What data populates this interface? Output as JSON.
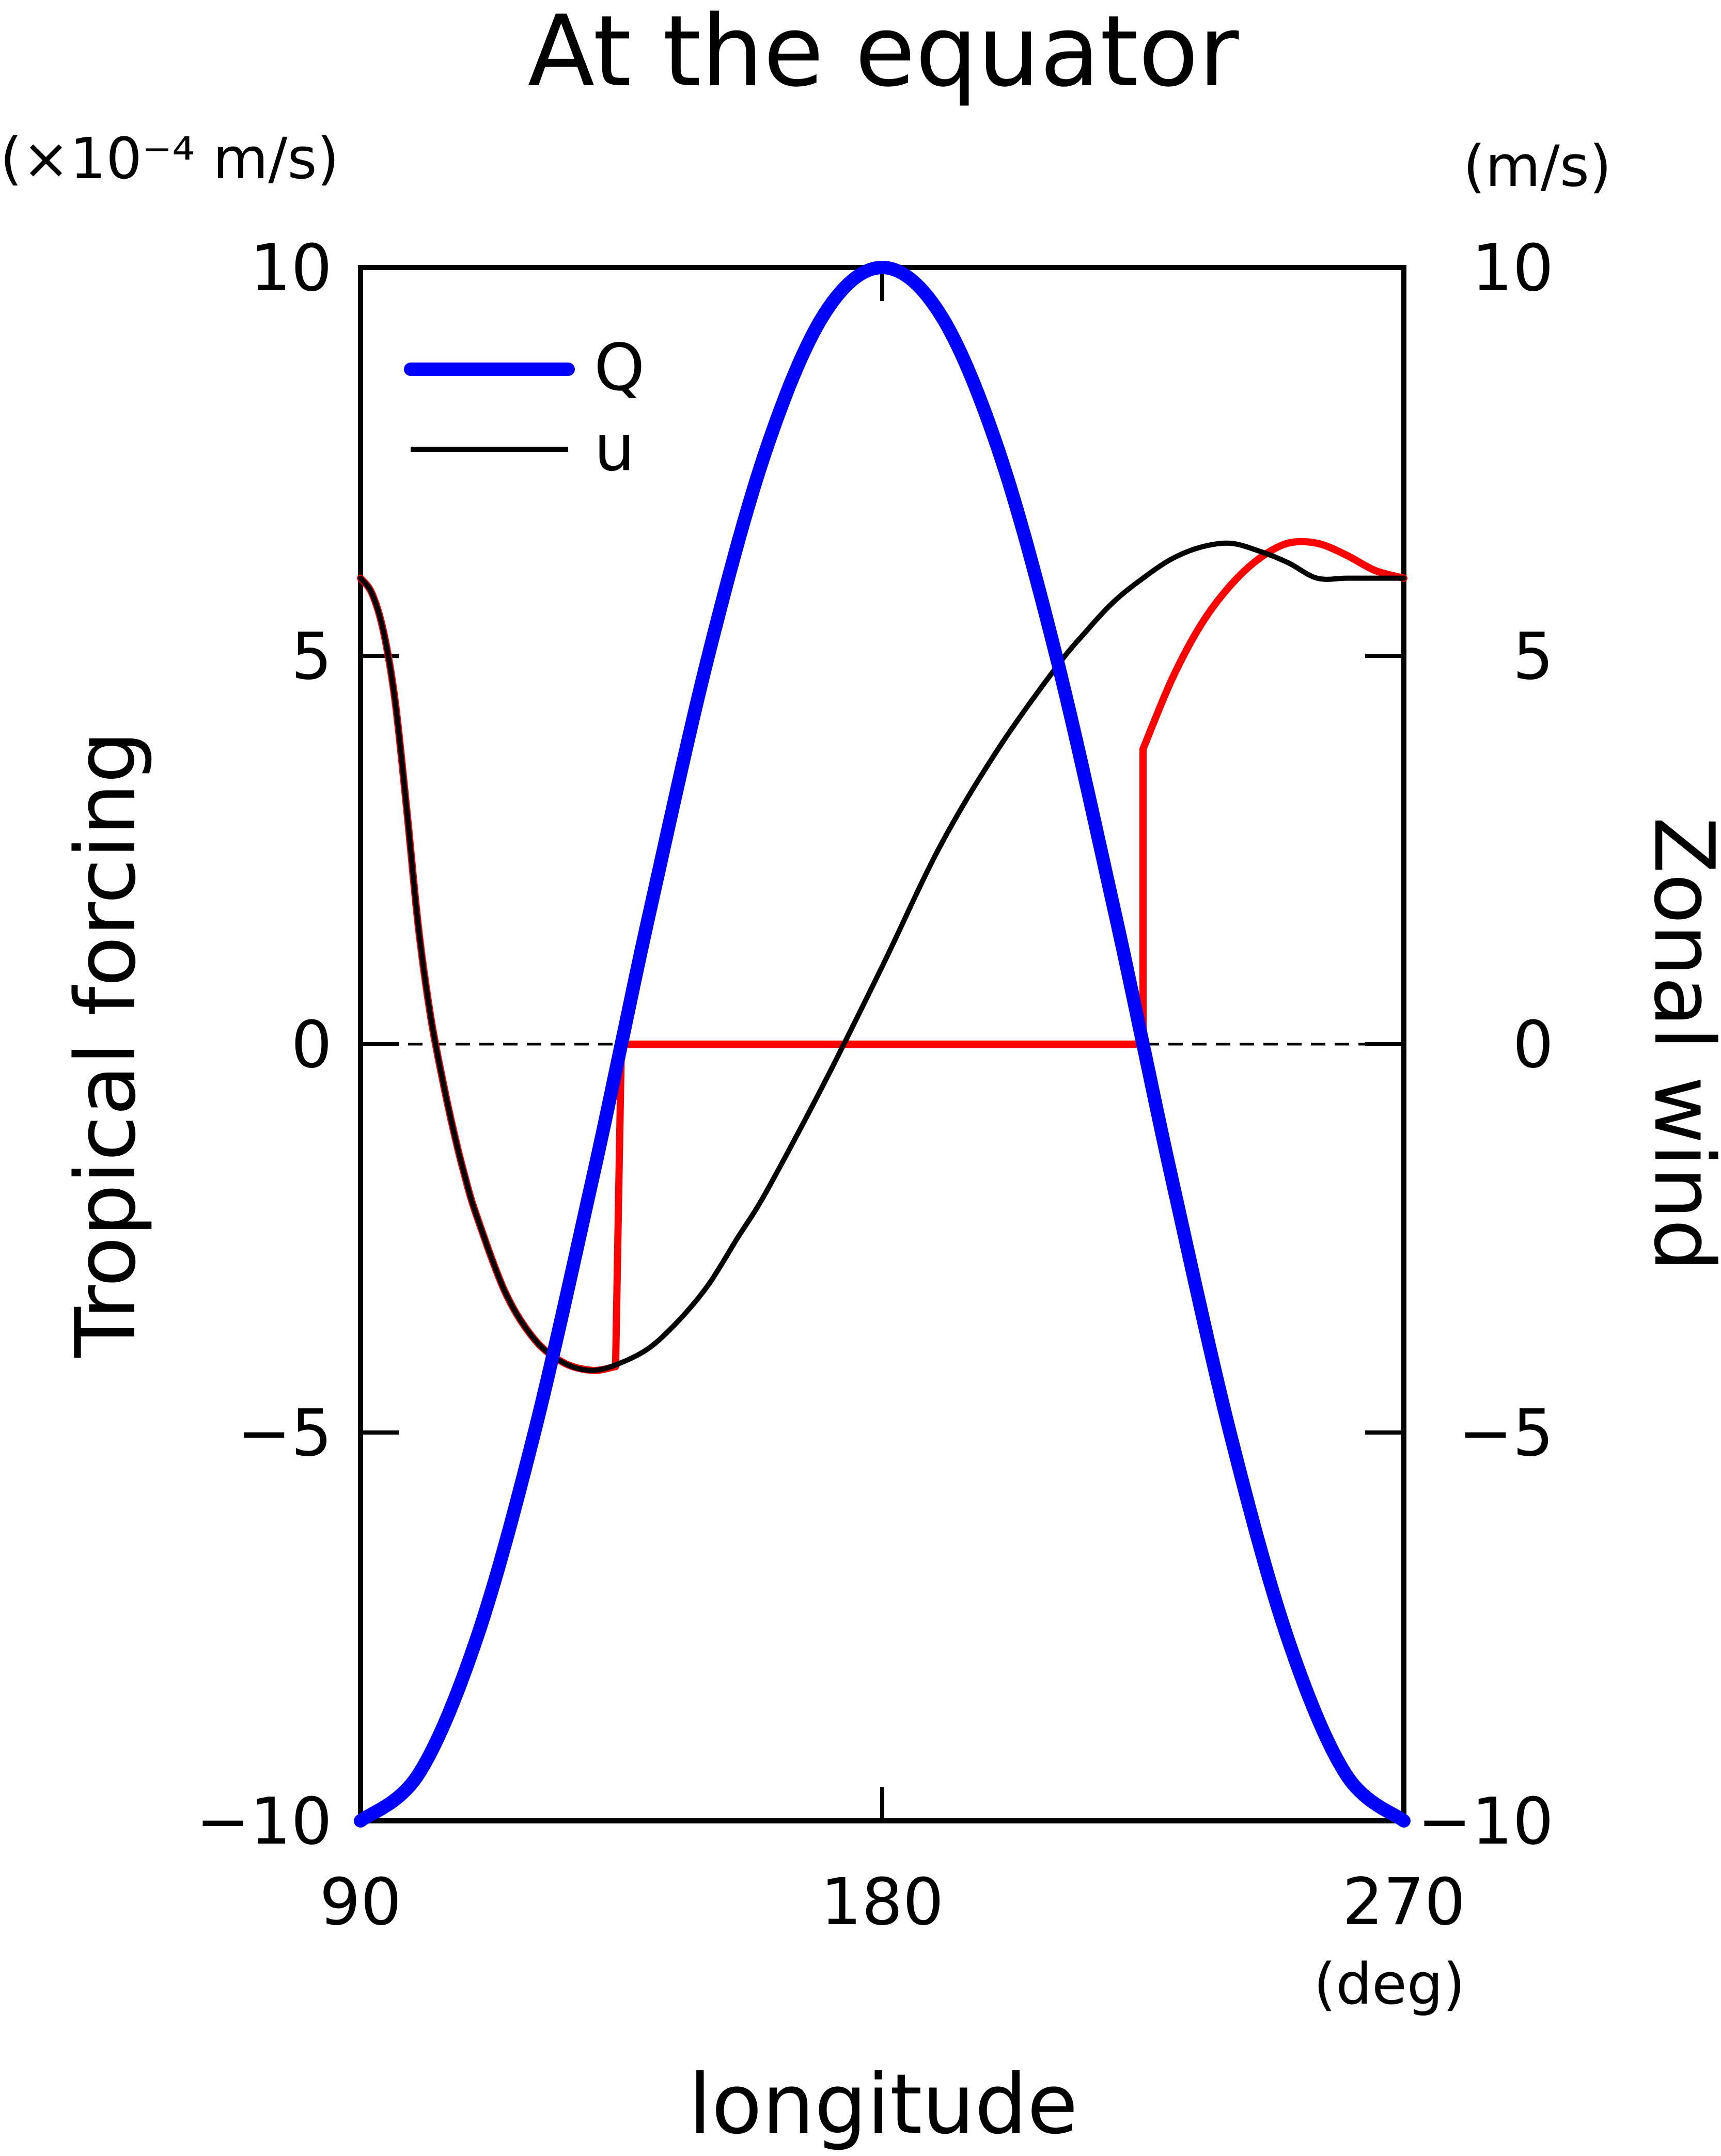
{
  "chart_data": {
    "type": "line",
    "title": "At the equator",
    "xlabel": "longitude",
    "x_unit": "(deg)",
    "xlim": [
      90,
      270
    ],
    "x_ticks": [
      "90",
      "180",
      "270"
    ],
    "ylabel_left": "Tropical forcing",
    "y_unit_left": "(×10⁻⁴ m/s)",
    "ylim_left": [
      -10,
      10
    ],
    "ylabel_right": "Zonal wind",
    "y_unit_right": "(m/s)",
    "ylim_right": [
      -10,
      10
    ],
    "y_ticks": [
      "10",
      "5",
      "0",
      "−5",
      "−10"
    ],
    "legend_position": "top-left",
    "zero_line": "dashed",
    "series": [
      {
        "name": "Q",
        "color": "#0000ff",
        "x": [
          90,
          100,
          110,
          120,
          130,
          135,
          140,
          150,
          160,
          170,
          180,
          190,
          200,
          210,
          220,
          225,
          230,
          240,
          250,
          260,
          270
        ],
        "y": [
          -10,
          -9.4,
          -7.66,
          -5,
          -1.74,
          0,
          1.74,
          5,
          7.66,
          9.4,
          10,
          9.4,
          7.66,
          5,
          1.74,
          0,
          -1.74,
          -5,
          -7.66,
          -9.4,
          -10
        ]
      },
      {
        "name": "u",
        "color": "#000000",
        "x": [
          90,
          92,
          94,
          96,
          98,
          100,
          102,
          104,
          106,
          108,
          110,
          115,
          120,
          125,
          130,
          135,
          140,
          145,
          150,
          155,
          160,
          170,
          180,
          190,
          200,
          210,
          215,
          220,
          225,
          230,
          235,
          240,
          245,
          250,
          255,
          260,
          265,
          270
        ],
        "y": [
          6,
          5.8,
          5.3,
          4.4,
          3.0,
          1.5,
          0.4,
          -0.4,
          -1.1,
          -1.7,
          -2.2,
          -3.2,
          -3.8,
          -4.1,
          -4.2,
          -4.1,
          -3.9,
          -3.55,
          -3.1,
          -2.5,
          -1.9,
          -0.5,
          1.0,
          2.55,
          3.8,
          4.85,
          5.3,
          5.7,
          6.0,
          6.25,
          6.4,
          6.45,
          6.35,
          6.2,
          6.0,
          6.0,
          6.0,
          6.0
        ]
      },
      {
        "color": "#ff0000",
        "x": [
          90,
          92,
          94,
          96,
          98,
          100,
          102,
          104,
          106,
          108,
          110,
          115,
          120,
          125,
          130,
          134,
          135,
          225,
          225,
          230,
          235,
          240,
          245,
          250,
          255,
          260,
          265,
          270
        ],
        "y": [
          6,
          5.8,
          5.3,
          4.4,
          3.0,
          1.5,
          0.4,
          -0.4,
          -1.1,
          -1.7,
          -2.2,
          -3.2,
          -3.8,
          -4.1,
          -4.2,
          -4.15,
          0,
          0,
          3.8,
          4.7,
          5.4,
          5.9,
          6.25,
          6.45,
          6.45,
          6.3,
          6.1,
          6.0
        ]
      }
    ]
  }
}
